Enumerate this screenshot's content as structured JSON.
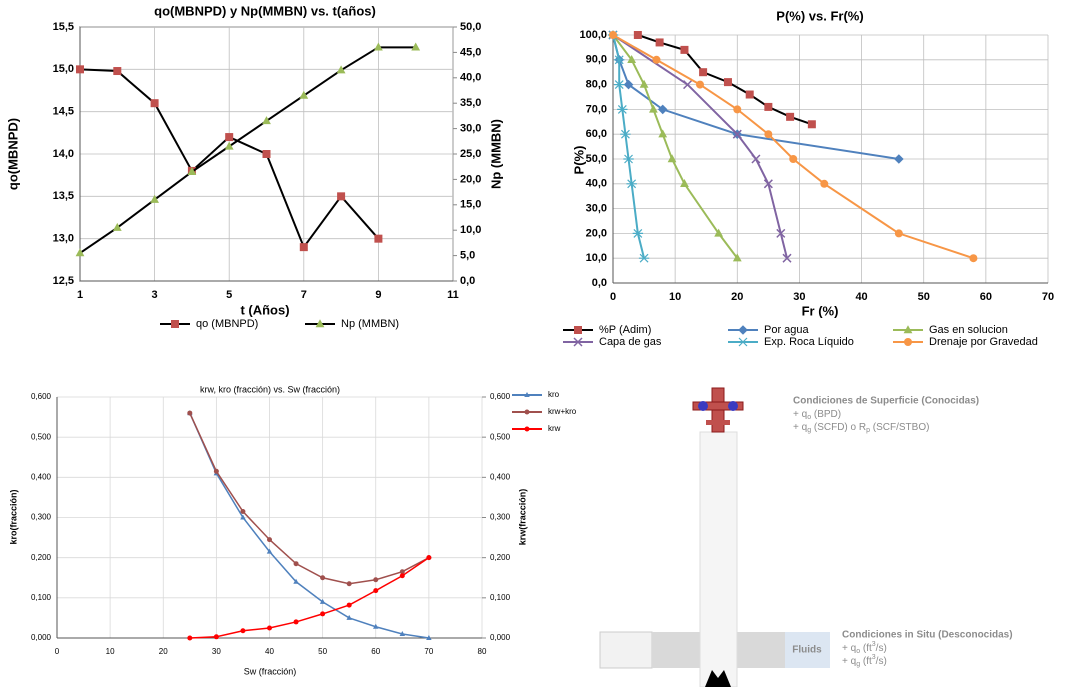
{
  "chart_data": [
    {
      "type": "line",
      "title": "qo(MBNPD) y Np(MMBN) vs. t(años)",
      "xlabel": "t (Años)",
      "ylabel": "qo(MBNPD)",
      "y2label": "Np (MMBN)",
      "xlim": [
        1,
        11
      ],
      "xticks": [
        1,
        3,
        5,
        7,
        9,
        11
      ],
      "ylim": [
        12.5,
        15.5
      ],
      "yticks": [
        {
          "value": 12.5,
          "label": "12,5"
        },
        {
          "value": 13,
          "label": "13,0"
        },
        {
          "value": 13.5,
          "label": "13,5"
        },
        {
          "value": 14,
          "label": "14,0"
        },
        {
          "value": 14.5,
          "label": "14,5"
        },
        {
          "value": 15,
          "label": "15,0"
        },
        {
          "value": 15.5,
          "label": "15,5"
        }
      ],
      "y2lim": [
        0,
        50
      ],
      "y2ticks": [
        {
          "value": 0,
          "label": "0,0"
        },
        {
          "value": 5,
          "label": "5,0"
        },
        {
          "value": 10,
          "label": "10,0"
        },
        {
          "value": 15,
          "label": "15,0"
        },
        {
          "value": 20,
          "label": "20,0"
        },
        {
          "value": 25,
          "label": "25,0"
        },
        {
          "value": 30,
          "label": "30,0"
        },
        {
          "value": 35,
          "label": "35,0"
        },
        {
          "value": 40,
          "label": "40,0"
        },
        {
          "value": 45,
          "label": "45,0"
        },
        {
          "value": 50,
          "label": "50,0"
        }
      ],
      "grid": true,
      "legend": "bottom",
      "series": [
        {
          "name": "qo (MBNPD)",
          "color": "#000000",
          "marker": "square",
          "marker_color": "#c0504d",
          "x": [
            1,
            2,
            3,
            4,
            5,
            6,
            7,
            8,
            9
          ],
          "values": [
            15.0,
            14.98,
            14.6,
            13.8,
            14.2,
            14.0,
            12.9,
            13.5,
            13.0
          ]
        },
        {
          "name": "Np (MMBN)",
          "color": "#000000",
          "marker": "triangle",
          "marker_color": "#9bbb59",
          "axis": "y2",
          "x": [
            1,
            2,
            3,
            4,
            5,
            6,
            7,
            8,
            9,
            10
          ],
          "values": [
            5.5,
            10.5,
            16,
            21.5,
            26.5,
            31.5,
            36.5,
            41.5,
            46,
            46
          ]
        }
      ]
    },
    {
      "type": "line",
      "title": "P(%) vs. Fr(%)",
      "xlabel": "Fr (%)",
      "ylabel": "P(%)",
      "xlim": [
        0,
        70
      ],
      "xticks": [
        0,
        10,
        20,
        30,
        40,
        50,
        60,
        70
      ],
      "ylim": [
        0,
        100
      ],
      "yticks": [
        {
          "value": 0,
          "label": "0,0"
        },
        {
          "value": 10,
          "label": "10,0"
        },
        {
          "value": 20,
          "label": "20,0"
        },
        {
          "value": 30,
          "label": "30,0"
        },
        {
          "value": 40,
          "label": "40,0"
        },
        {
          "value": 50,
          "label": "50,0"
        },
        {
          "value": 60,
          "label": "60,0"
        },
        {
          "value": 70,
          "label": "70,0"
        },
        {
          "value": 80,
          "label": "80,0"
        },
        {
          "value": 90,
          "label": "90,0"
        },
        {
          "value": 100,
          "label": "100,0"
        }
      ],
      "grid": true,
      "legend": "bottom",
      "series": [
        {
          "name": "%P (Adim)",
          "color": "#000000",
          "marker": "square",
          "marker_color": "#c0504d",
          "x": [
            4,
            7.5,
            11.5,
            14.5,
            18.5,
            22,
            25,
            28.5,
            32
          ],
          "values": [
            100,
            97,
            94,
            85,
            81,
            76,
            71,
            67,
            64
          ]
        },
        {
          "name": "Por agua",
          "color": "#4f81bd",
          "marker": "diamond",
          "marker_color": "#4f81bd",
          "x": [
            0,
            1,
            2.5,
            8,
            20,
            46
          ],
          "values": [
            100,
            90,
            80,
            70,
            60,
            50
          ]
        },
        {
          "name": "Gas en solucion",
          "color": "#9bbb59",
          "marker": "triangle",
          "marker_color": "#9bbb59",
          "x": [
            0,
            3,
            5,
            6.5,
            8,
            9.5,
            11.5,
            17,
            20
          ],
          "values": [
            100,
            90,
            80,
            70,
            60,
            50,
            40,
            20,
            10
          ]
        },
        {
          "name": "Capa de gas",
          "color": "#8064a2",
          "marker": "x",
          "marker_color": "#8064a2",
          "x": [
            0,
            12,
            20,
            23,
            25,
            27,
            28
          ],
          "values": [
            100,
            80,
            60,
            50,
            40,
            20,
            10
          ]
        },
        {
          "name": "Exp. Roca Líquido",
          "color": "#4bacc6",
          "marker": "asterisk",
          "marker_color": "#4bacc6",
          "x": [
            0,
            1,
            1,
            1.5,
            2,
            2.5,
            3,
            4,
            5
          ],
          "values": [
            100,
            90,
            80,
            70,
            60,
            50,
            40,
            20,
            10
          ]
        },
        {
          "name": "Drenaje por Gravedad",
          "color": "#f79646",
          "marker": "circle",
          "marker_color": "#f79646",
          "x": [
            0,
            7,
            14,
            20,
            25,
            29,
            34,
            46,
            58
          ],
          "values": [
            100,
            90,
            80,
            70,
            60,
            50,
            40,
            20,
            10
          ]
        }
      ]
    },
    {
      "type": "line",
      "title": "krw, kro (fracción) vs. Sw (fracción)",
      "xlabel": "Sw (fracción)",
      "ylabel": "kro(fracción)",
      "y2label": "krw(fracción)",
      "xlim": [
        0,
        80
      ],
      "xticks": [
        0,
        10,
        20,
        30,
        40,
        50,
        60,
        70,
        80
      ],
      "ylim": [
        0,
        0.6
      ],
      "yticks": [
        {
          "value": 0,
          "label": "0,000"
        },
        {
          "value": 0.1,
          "label": "0,100"
        },
        {
          "value": 0.2,
          "label": "0,200"
        },
        {
          "value": 0.3,
          "label": "0,300"
        },
        {
          "value": 0.4,
          "label": "0,400"
        },
        {
          "value": 0.5,
          "label": "0,500"
        },
        {
          "value": 0.6,
          "label": "0,600"
        }
      ],
      "y2lim": [
        0,
        0.6
      ],
      "y2ticks": [
        {
          "value": 0,
          "label": "0,000"
        },
        {
          "value": 0.1,
          "label": "0,100"
        },
        {
          "value": 0.2,
          "label": "0,200"
        },
        {
          "value": 0.3,
          "label": "0,300"
        },
        {
          "value": 0.4,
          "label": "0,400"
        },
        {
          "value": 0.5,
          "label": "0,500"
        },
        {
          "value": 0.6,
          "label": "0,600"
        }
      ],
      "grid": true,
      "legend": "right",
      "series": [
        {
          "name": "kro",
          "color": "#4f81bd",
          "marker": "triangle",
          "marker_color": "#4f81bd",
          "x": [
            25,
            30,
            35,
            40,
            45,
            50,
            55,
            60,
            65,
            70
          ],
          "values": [
            0.56,
            0.41,
            0.3,
            0.215,
            0.14,
            0.09,
            0.05,
            0.028,
            0.01,
            0.0
          ]
        },
        {
          "name": "krw+kro",
          "color": "#a0504d",
          "marker": "circle",
          "marker_color": "#a0504d",
          "x": [
            25,
            30,
            35,
            40,
            45,
            50,
            55,
            60,
            65,
            70
          ],
          "values": [
            0.56,
            0.415,
            0.315,
            0.245,
            0.185,
            0.15,
            0.135,
            0.145,
            0.165,
            0.2
          ]
        },
        {
          "name": "krw",
          "color": "#ff0000",
          "marker": "circle",
          "marker_color": "#ff0000",
          "axis": "y2",
          "x": [
            25,
            30,
            35,
            40,
            45,
            50,
            55,
            60,
            65,
            70
          ],
          "values": [
            0.0,
            0.003,
            0.018,
            0.025,
            0.04,
            0.06,
            0.082,
            0.118,
            0.155,
            0.2
          ]
        }
      ]
    }
  ],
  "diagram": {
    "surface": {
      "title": "Condiciones de Superficie (Conocidas)",
      "lines": [
        [
          {
            "text": "+ q"
          },
          {
            "text": "o",
            "style": "sub"
          },
          {
            "text": " (BPD)"
          }
        ],
        [
          {
            "text": "+ q"
          },
          {
            "text": "g",
            "style": "sub"
          },
          {
            "text": " (SCFD) o R"
          },
          {
            "text": "p",
            "style": "sub"
          },
          {
            "text": " (SCF/STBO)"
          }
        ]
      ]
    },
    "insitu": {
      "title": "Condiciones in Situ (Desconocidas)",
      "lines": [
        [
          {
            "text": "+ q"
          },
          {
            "text": "o",
            "style": "sub"
          },
          {
            "text": " (ft"
          },
          {
            "text": "3",
            "style": "sup"
          },
          {
            "text": "/s)"
          }
        ],
        [
          {
            "text": "+ q"
          },
          {
            "text": "g",
            "style": "sub"
          },
          {
            "text": " (ft"
          },
          {
            "text": "3",
            "style": "sup"
          },
          {
            "text": "/s)"
          }
        ]
      ]
    },
    "fluids": "Fluids"
  }
}
